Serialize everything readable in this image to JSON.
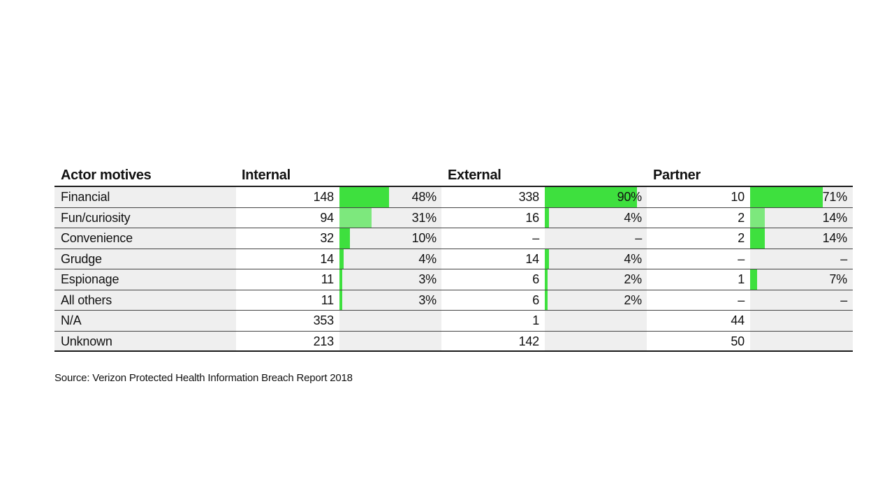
{
  "chart_data": {
    "type": "table",
    "header": {
      "motive": "Actor motives",
      "groups": [
        "Internal",
        "External",
        "Partner"
      ]
    },
    "bar_color": "#3ee03e",
    "bar_color_light": "#7de87d",
    "rows": [
      {
        "label": "Financial",
        "cells": [
          {
            "count": "148",
            "pct": "48%",
            "value": 48
          },
          {
            "count": "338",
            "pct": "90%",
            "value": 90
          },
          {
            "count": "10",
            "pct": "71%",
            "value": 71
          }
        ]
      },
      {
        "label": "Fun/curiosity",
        "cells": [
          {
            "count": "94",
            "pct": "31%",
            "value": 31
          },
          {
            "count": "16",
            "pct": "4%",
            "value": 4
          },
          {
            "count": "2",
            "pct": "14%",
            "value": 14
          }
        ]
      },
      {
        "label": "Convenience",
        "cells": [
          {
            "count": "32",
            "pct": "10%",
            "value": 10
          },
          {
            "count": "–",
            "pct": "–",
            "value": 0
          },
          {
            "count": "2",
            "pct": "14%",
            "value": 14
          }
        ]
      },
      {
        "label": "Grudge",
        "cells": [
          {
            "count": "14",
            "pct": "4%",
            "value": 4
          },
          {
            "count": "14",
            "pct": "4%",
            "value": 4
          },
          {
            "count": "–",
            "pct": "–",
            "value": 0
          }
        ]
      },
      {
        "label": "Espionage",
        "cells": [
          {
            "count": "11",
            "pct": "3%",
            "value": 3
          },
          {
            "count": "6",
            "pct": "2%",
            "value": 2
          },
          {
            "count": "1",
            "pct": "7%",
            "value": 7
          }
        ]
      },
      {
        "label": "All others",
        "cells": [
          {
            "count": "11",
            "pct": "3%",
            "value": 3
          },
          {
            "count": "6",
            "pct": "2%",
            "value": 2
          },
          {
            "count": "–",
            "pct": "–",
            "value": 0
          }
        ]
      },
      {
        "label": "N/A",
        "cells": [
          {
            "count": "353",
            "pct": "",
            "value": 0
          },
          {
            "count": "1",
            "pct": "",
            "value": 0
          },
          {
            "count": "44",
            "pct": "",
            "value": 0
          }
        ]
      },
      {
        "label": "Unknown",
        "cells": [
          {
            "count": "213",
            "pct": "",
            "value": 0
          },
          {
            "count": "142",
            "pct": "",
            "value": 0
          },
          {
            "count": "50",
            "pct": "",
            "value": 0
          }
        ]
      }
    ],
    "source": "Source: Verizon Protected Health Information Breach Report 2018"
  }
}
